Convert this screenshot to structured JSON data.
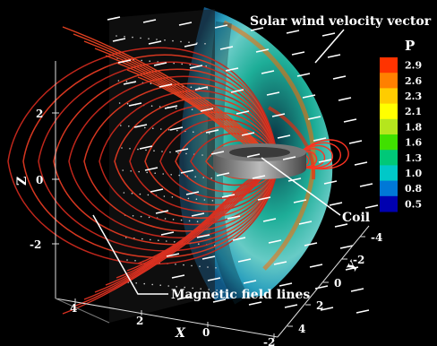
{
  "annotations": {
    "solar_wind": "Solar wind velocity vector",
    "coil": "Coil",
    "field_lines": "Magnetic field lines"
  },
  "colorbar": {
    "title": "P",
    "labels": [
      "2.9",
      "2.6",
      "2.3",
      "2.1",
      "1.8",
      "1.6",
      "1.3",
      "1.0",
      "0.8",
      "0.5"
    ],
    "colors": [
      "#ff3300",
      "#ff8000",
      "#ffcc00",
      "#ffff00",
      "#b5e61d",
      "#40e000",
      "#00c878",
      "#00c8c8",
      "#0078d7",
      "#0000b0"
    ]
  },
  "axes": {
    "z": {
      "label": "Z",
      "ticks": [
        "2",
        "0",
        "-2"
      ]
    },
    "x": {
      "label": "X",
      "ticks": [
        "4",
        "2",
        "0",
        "-2"
      ]
    },
    "y": {
      "label": "Y",
      "ticks": [
        "-4",
        "-2",
        "0",
        "2",
        "4"
      ]
    }
  }
}
